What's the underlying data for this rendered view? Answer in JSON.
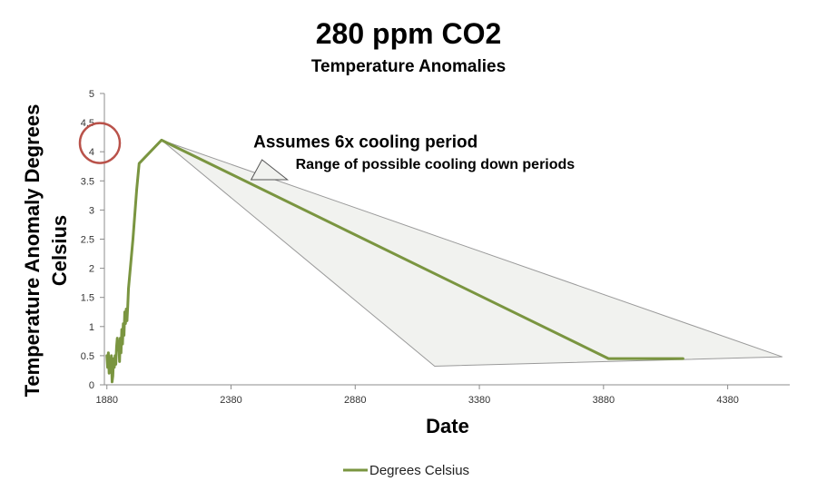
{
  "chart_data": {
    "type": "line",
    "title": "280 ppm CO2",
    "subtitle": "Temperature Anomalies",
    "xlabel": "Date",
    "ylabel_line1": "Temperature Anomaly Degrees",
    "ylabel_line2": "Celsius",
    "xlim": [
      1870,
      4630
    ],
    "ylim": [
      0,
      5
    ],
    "x_ticks": [
      1880,
      2380,
      2880,
      3380,
      3880,
      4380
    ],
    "y_ticks": [
      0,
      0.5,
      1,
      1.5,
      2,
      2.5,
      3,
      3.5,
      4,
      4.5,
      5
    ],
    "grid": false,
    "legend_position": "bottom",
    "series": [
      {
        "name": "Degrees Celsius",
        "color": "#7a9540",
        "points": [
          [
            1880,
            0.5
          ],
          [
            1883,
            0.3
          ],
          [
            1886,
            0.55
          ],
          [
            1889,
            0.2
          ],
          [
            1892,
            0.45
          ],
          [
            1895,
            0.25
          ],
          [
            1898,
            0.5
          ],
          [
            1901,
            0.05
          ],
          [
            1904,
            0.15
          ],
          [
            1907,
            0.45
          ],
          [
            1910,
            0.3
          ],
          [
            1913,
            0.5
          ],
          [
            1916,
            0.35
          ],
          [
            1919,
            0.65
          ],
          [
            1922,
            0.8
          ],
          [
            1925,
            0.6
          ],
          [
            1928,
            0.75
          ],
          [
            1931,
            0.4
          ],
          [
            1934,
            0.8
          ],
          [
            1937,
            0.55
          ],
          [
            1940,
            0.95
          ],
          [
            1943,
            0.7
          ],
          [
            1946,
            1.05
          ],
          [
            1949,
            0.85
          ],
          [
            1952,
            1.25
          ],
          [
            1955,
            1.05
          ],
          [
            1958,
            1.3
          ],
          [
            1961,
            1.1
          ],
          [
            1964,
            1.35
          ],
          [
            1967,
            1.65
          ],
          [
            1985,
            2.5
          ],
          [
            2000,
            3.35
          ],
          [
            2010,
            3.8
          ],
          [
            2100,
            4.2
          ],
          [
            3900,
            0.45
          ],
          [
            4200,
            0.45
          ]
        ]
      }
    ],
    "range_region": {
      "label": "Range of possible cooling down periods",
      "fill": "#f1f2ef",
      "stroke": "#9a9a9a",
      "points": [
        [
          2100,
          4.2
        ],
        [
          4600,
          0.48
        ],
        [
          3200,
          0.32
        ]
      ]
    },
    "annotations": [
      {
        "text": "Assumes 6x cooling period",
        "x": 2470,
        "y": 4.18
      },
      {
        "text": "Range of possible cooling down periods",
        "x": 2640,
        "y": 3.8
      }
    ],
    "highlight_circle": {
      "x": 1870,
      "y": 4.15,
      "color": "#b9524a"
    }
  }
}
